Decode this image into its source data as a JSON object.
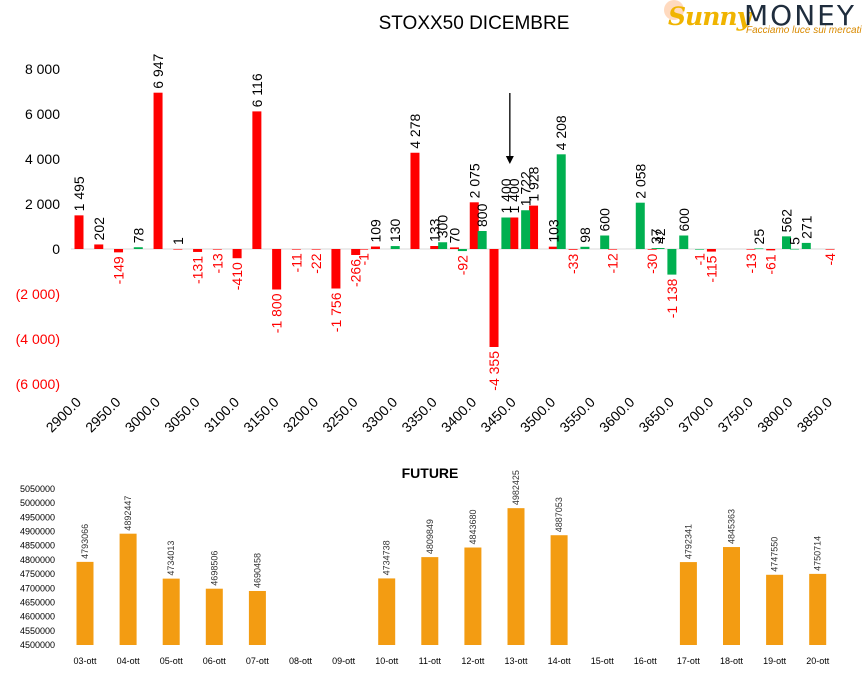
{
  "logo": {
    "brand_script": "Sunny",
    "brand_text": "MONEY",
    "tagline": "Facciamo luce sui mercati"
  },
  "colors": {
    "call_bar": "#ff0000",
    "put_bar": "#00b050",
    "future_bar": "#f39c12",
    "negative_label": "#ff0000",
    "text": "#000000"
  },
  "chart_data": [
    {
      "type": "bar",
      "title": "STOXX50 DICEMBRE",
      "xlabel": "",
      "ylabel": "",
      "ylim": [
        -6000,
        8000
      ],
      "yticks": [
        8000,
        6000,
        4000,
        2000,
        0,
        -2000,
        -4000,
        -6000
      ],
      "ytick_labels": [
        "8 000",
        "6 000",
        "4 000",
        "2 000",
        "0",
        "(2 000)",
        "(4 000)",
        "(6 000)"
      ],
      "categories": [
        "2900.0",
        "2950.0",
        "3000.0",
        "3050.0",
        "3100.0",
        "3150.0",
        "3200.0",
        "3250.0",
        "3300.0",
        "3350.0",
        "3400.0",
        "3450.0",
        "3500.0",
        "3550.0",
        "3600.0",
        "3650.0",
        "3700.0",
        "3750.0",
        "3800.0",
        "3850.0"
      ],
      "series": [
        {
          "color": "#ff0000",
          "points": [
            {
              "x": 2900,
              "y": 1495,
              "label": "1 495"
            },
            {
              "x": 2925,
              "y": 202,
              "label": "202"
            },
            {
              "x": 2950,
              "y": -149,
              "label": "-149"
            },
            {
              "x": 3000,
              "y": 6947,
              "label": "6 947"
            },
            {
              "x": 3025,
              "y": 1,
              "label": "1"
            },
            {
              "x": 3050,
              "y": -131,
              "label": "-131"
            },
            {
              "x": 3075,
              "y": -13,
              "label": "-13"
            },
            {
              "x": 3100,
              "y": -410,
              "label": "-410"
            },
            {
              "x": 3125,
              "y": 6116,
              "label": "6 116"
            },
            {
              "x": 3150,
              "y": -1800,
              "label": "-1 800"
            },
            {
              "x": 3175,
              "y": -11,
              "label": "-11"
            },
            {
              "x": 3200,
              "y": -22,
              "label": "-22"
            },
            {
              "x": 3225,
              "y": -1756,
              "label": "-1 756"
            },
            {
              "x": 3250,
              "y": -266,
              "label": "-266"
            },
            {
              "x": 3260,
              "y": -1,
              "label": "-1"
            },
            {
              "x": 3275,
              "y": 109,
              "label": "109"
            },
            {
              "x": 3325,
              "y": 4278,
              "label": "4 278"
            },
            {
              "x": 3350,
              "y": 133,
              "label": "133"
            },
            {
              "x": 3375,
              "y": 70,
              "label": "70"
            },
            {
              "x": 3400,
              "y": 2075,
              "label": "2 075"
            },
            {
              "x": 3425,
              "y": -4355,
              "label": "-4 355"
            },
            {
              "x": 3450,
              "y": 1400,
              "label": "1 400"
            },
            {
              "x": 3475,
              "y": 1928,
              "label": "1 928"
            },
            {
              "x": 3500,
              "y": 103,
              "label": "103"
            },
            {
              "x": 3525,
              "y": -33,
              "label": "-33"
            },
            {
              "x": 3575,
              "y": -12,
              "label": "-12"
            },
            {
              "x": 3625,
              "y": -30,
              "label": "-30"
            },
            {
              "x": 3700,
              "y": -115,
              "label": "-115"
            },
            {
              "x": 3750,
              "y": -13,
              "label": "-13"
            },
            {
              "x": 3775,
              "y": -61,
              "label": "-61"
            },
            {
              "x": 3850,
              "y": -4,
              "label": "-4"
            }
          ]
        },
        {
          "color": "#00b050",
          "points": [
            {
              "x": 2975,
              "y": 78,
              "label": "78"
            },
            {
              "x": 3300,
              "y": 130,
              "label": "130"
            },
            {
              "x": 3360,
              "y": 300,
              "label": "300"
            },
            {
              "x": 3385,
              "y": -92,
              "label": "-92"
            },
            {
              "x": 3410,
              "y": 800,
              "label": "800"
            },
            {
              "x": 3440,
              "y": 1400,
              "label": "1 400"
            },
            {
              "x": 3465,
              "y": 1722,
              "label": "1 722"
            },
            {
              "x": 3510,
              "y": 4208,
              "label": "4 208"
            },
            {
              "x": 3540,
              "y": 98,
              "label": "98"
            },
            {
              "x": 3565,
              "y": 600,
              "label": "600"
            },
            {
              "x": 3610,
              "y": 2058,
              "label": "2 058"
            },
            {
              "x": 3630,
              "y": 37,
              "label": "37"
            },
            {
              "x": 3635,
              "y": 42,
              "label": "42"
            },
            {
              "x": 3650,
              "y": -1138,
              "label": "-1 138"
            },
            {
              "x": 3665,
              "y": 600,
              "label": "600"
            },
            {
              "x": 3685,
              "y": -1,
              "label": "-1"
            },
            {
              "x": 3760,
              "y": 25,
              "label": "25"
            },
            {
              "x": 3795,
              "y": 562,
              "label": "562"
            },
            {
              "x": 3805,
              "y": 5,
              "label": "5"
            },
            {
              "x": 3820,
              "y": 271,
              "label": "271"
            }
          ]
        }
      ],
      "annotations": [
        {
          "type": "arrow",
          "x": 3445,
          "direction": "down"
        }
      ]
    },
    {
      "type": "bar",
      "title": "FUTURE",
      "xlabel": "",
      "ylabel": "",
      "ylim": [
        4500000,
        5050000
      ],
      "yticks": [
        5050000,
        5000000,
        4950000,
        4900000,
        4850000,
        4800000,
        4750000,
        4700000,
        4650000,
        4600000,
        4550000,
        4500000
      ],
      "categories": [
        "03-ott",
        "04-ott",
        "05-ott",
        "06-ott",
        "07-ott",
        "08-ott",
        "09-ott",
        "10-ott",
        "11-ott",
        "12-ott",
        "13-ott",
        "14-ott",
        "15-ott",
        "16-ott",
        "17-ott",
        "18-ott",
        "19-ott",
        "20-ott"
      ],
      "values": [
        4793066,
        4892447,
        4734013,
        4698506,
        4690458,
        null,
        null,
        4734738,
        4809849,
        4843680,
        4982425,
        4887053,
        null,
        null,
        4792341,
        4845363,
        4747550,
        4750714
      ],
      "color": "#f39c12"
    }
  ]
}
